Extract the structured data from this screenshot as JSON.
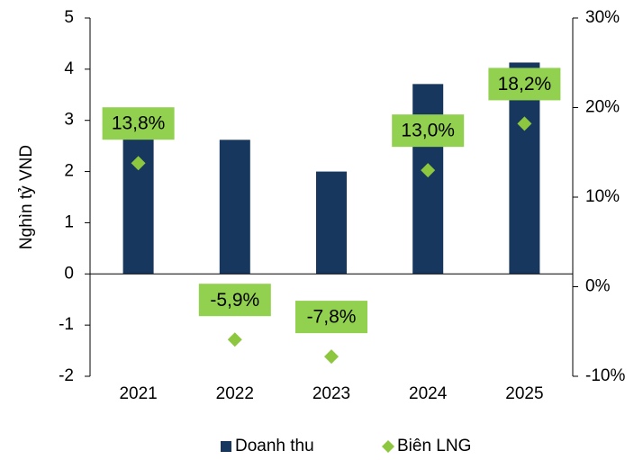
{
  "chart_data": {
    "type": "bar",
    "y_label": "Nghìn tỷ VND",
    "categories": [
      "2021",
      "2022",
      "2023",
      "2024",
      "2025"
    ],
    "series": [
      {
        "name": "Doanh thu",
        "type": "bar",
        "color": "#17375e",
        "values": [
          3.22,
          2.62,
          2.0,
          3.71,
          4.13
        ]
      },
      {
        "name": "Biên LNG",
        "type": "scatter",
        "axis": "y2",
        "color": "#8dc63f",
        "label_color": "#92d050",
        "values": [
          13.8,
          -5.9,
          -7.8,
          13.0,
          18.2
        ],
        "value_labels": [
          "13,8%",
          "-5,9%",
          "-7,8%",
          "13,0%",
          "18,2%"
        ]
      }
    ],
    "ylim": [
      -2,
      5
    ],
    "yticks": [
      -2,
      -1,
      0,
      1,
      2,
      3,
      4,
      5
    ],
    "y2lim": [
      -10,
      30
    ],
    "y2ticks": [
      {
        "value": -10,
        "label": "-10%"
      },
      {
        "value": 0,
        "label": "0%"
      },
      {
        "value": 10,
        "label": "10%"
      },
      {
        "value": 20,
        "label": "20%"
      },
      {
        "value": 30,
        "label": "30%"
      }
    ],
    "legend": "bottom"
  }
}
